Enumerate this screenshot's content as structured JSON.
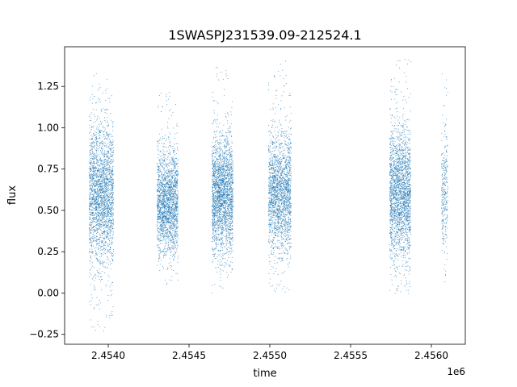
{
  "chart_data": {
    "type": "scatter",
    "title": "1SWASPJ231539.09-212524.1",
    "xlabel": "time",
    "ylabel": "flux",
    "x_offset_label": "1e6",
    "xlim": [
      2453730,
      2456210
    ],
    "ylim": [
      -0.31,
      1.49
    ],
    "xticks": [
      2454000,
      2454500,
      2455000,
      2455500,
      2456000
    ],
    "xtick_labels": [
      "2.4540",
      "2.4545",
      "2.4550",
      "2.4555",
      "2.4560"
    ],
    "yticks": [
      -0.25,
      0,
      0.25,
      0.5,
      0.75,
      1.0,
      1.25
    ],
    "ytick_labels": [
      "−0.25",
      "0.00",
      "0.25",
      "0.50",
      "0.75",
      "1.00",
      "1.25"
    ],
    "grid": false,
    "marker_color": "#1f77b4",
    "series": [
      {
        "observing_seasons": [
          {
            "x_range": [
              2453880,
              2454030
            ],
            "flux_typical": 0.6,
            "flux_spread": [
              0.15,
              1.0
            ],
            "flux_extremes": [
              -0.24,
              1.34
            ],
            "points": 2400
          },
          {
            "x_range": [
              2454300,
              2454430
            ],
            "flux_typical": 0.55,
            "flux_spread": [
              0.2,
              0.85
            ],
            "flux_extremes": [
              0.05,
              1.22
            ],
            "points": 2000
          },
          {
            "x_range": [
              2454640,
              2454770
            ],
            "flux_typical": 0.6,
            "flux_spread": [
              0.2,
              0.9
            ],
            "flux_extremes": [
              0.0,
              1.37
            ],
            "points": 2300
          },
          {
            "x_range": [
              2454990,
              2455130
            ],
            "flux_typical": 0.6,
            "flux_spread": [
              0.25,
              0.95
            ],
            "flux_extremes": [
              0.0,
              1.41
            ],
            "points": 2000
          },
          {
            "x_range": [
              2455740,
              2455870
            ],
            "flux_typical": 0.6,
            "flux_spread": [
              0.2,
              1.0
            ],
            "flux_extremes": [
              0.0,
              1.42
            ],
            "points": 2200
          },
          {
            "x_range": [
              2456060,
              2456100
            ],
            "flux_typical": 0.6,
            "flux_spread": [
              0.15,
              0.9
            ],
            "flux_extremes": [
              0.02,
              1.37
            ],
            "points": 300
          }
        ]
      }
    ]
  }
}
